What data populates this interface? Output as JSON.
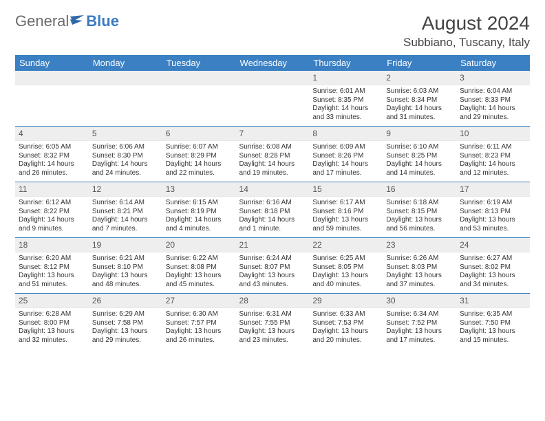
{
  "brand": {
    "part1": "General",
    "part2": "Blue",
    "logo_color": "#2f6aa8"
  },
  "title": "August 2024",
  "location": "Subbiano, Tuscany, Italy",
  "header_bg": "#3a80c3",
  "daynum_bg": "#eeeeee",
  "border_color": "#3a80c3",
  "weekdays": [
    "Sunday",
    "Monday",
    "Tuesday",
    "Wednesday",
    "Thursday",
    "Friday",
    "Saturday"
  ],
  "grid": [
    [
      null,
      null,
      null,
      null,
      {
        "n": "1",
        "sr": "6:01 AM",
        "ss": "8:35 PM",
        "dl": "14 hours and 33 minutes."
      },
      {
        "n": "2",
        "sr": "6:03 AM",
        "ss": "8:34 PM",
        "dl": "14 hours and 31 minutes."
      },
      {
        "n": "3",
        "sr": "6:04 AM",
        "ss": "8:33 PM",
        "dl": "14 hours and 29 minutes."
      }
    ],
    [
      {
        "n": "4",
        "sr": "6:05 AM",
        "ss": "8:32 PM",
        "dl": "14 hours and 26 minutes."
      },
      {
        "n": "5",
        "sr": "6:06 AM",
        "ss": "8:30 PM",
        "dl": "14 hours and 24 minutes."
      },
      {
        "n": "6",
        "sr": "6:07 AM",
        "ss": "8:29 PM",
        "dl": "14 hours and 22 minutes."
      },
      {
        "n": "7",
        "sr": "6:08 AM",
        "ss": "8:28 PM",
        "dl": "14 hours and 19 minutes."
      },
      {
        "n": "8",
        "sr": "6:09 AM",
        "ss": "8:26 PM",
        "dl": "14 hours and 17 minutes."
      },
      {
        "n": "9",
        "sr": "6:10 AM",
        "ss": "8:25 PM",
        "dl": "14 hours and 14 minutes."
      },
      {
        "n": "10",
        "sr": "6:11 AM",
        "ss": "8:23 PM",
        "dl": "14 hours and 12 minutes."
      }
    ],
    [
      {
        "n": "11",
        "sr": "6:12 AM",
        "ss": "8:22 PM",
        "dl": "14 hours and 9 minutes."
      },
      {
        "n": "12",
        "sr": "6:14 AM",
        "ss": "8:21 PM",
        "dl": "14 hours and 7 minutes."
      },
      {
        "n": "13",
        "sr": "6:15 AM",
        "ss": "8:19 PM",
        "dl": "14 hours and 4 minutes."
      },
      {
        "n": "14",
        "sr": "6:16 AM",
        "ss": "8:18 PM",
        "dl": "14 hours and 1 minute."
      },
      {
        "n": "15",
        "sr": "6:17 AM",
        "ss": "8:16 PM",
        "dl": "13 hours and 59 minutes."
      },
      {
        "n": "16",
        "sr": "6:18 AM",
        "ss": "8:15 PM",
        "dl": "13 hours and 56 minutes."
      },
      {
        "n": "17",
        "sr": "6:19 AM",
        "ss": "8:13 PM",
        "dl": "13 hours and 53 minutes."
      }
    ],
    [
      {
        "n": "18",
        "sr": "6:20 AM",
        "ss": "8:12 PM",
        "dl": "13 hours and 51 minutes."
      },
      {
        "n": "19",
        "sr": "6:21 AM",
        "ss": "8:10 PM",
        "dl": "13 hours and 48 minutes."
      },
      {
        "n": "20",
        "sr": "6:22 AM",
        "ss": "8:08 PM",
        "dl": "13 hours and 45 minutes."
      },
      {
        "n": "21",
        "sr": "6:24 AM",
        "ss": "8:07 PM",
        "dl": "13 hours and 43 minutes."
      },
      {
        "n": "22",
        "sr": "6:25 AM",
        "ss": "8:05 PM",
        "dl": "13 hours and 40 minutes."
      },
      {
        "n": "23",
        "sr": "6:26 AM",
        "ss": "8:03 PM",
        "dl": "13 hours and 37 minutes."
      },
      {
        "n": "24",
        "sr": "6:27 AM",
        "ss": "8:02 PM",
        "dl": "13 hours and 34 minutes."
      }
    ],
    [
      {
        "n": "25",
        "sr": "6:28 AM",
        "ss": "8:00 PM",
        "dl": "13 hours and 32 minutes."
      },
      {
        "n": "26",
        "sr": "6:29 AM",
        "ss": "7:58 PM",
        "dl": "13 hours and 29 minutes."
      },
      {
        "n": "27",
        "sr": "6:30 AM",
        "ss": "7:57 PM",
        "dl": "13 hours and 26 minutes."
      },
      {
        "n": "28",
        "sr": "6:31 AM",
        "ss": "7:55 PM",
        "dl": "13 hours and 23 minutes."
      },
      {
        "n": "29",
        "sr": "6:33 AM",
        "ss": "7:53 PM",
        "dl": "13 hours and 20 minutes."
      },
      {
        "n": "30",
        "sr": "6:34 AM",
        "ss": "7:52 PM",
        "dl": "13 hours and 17 minutes."
      },
      {
        "n": "31",
        "sr": "6:35 AM",
        "ss": "7:50 PM",
        "dl": "13 hours and 15 minutes."
      }
    ]
  ],
  "labels": {
    "sunrise": "Sunrise:",
    "sunset": "Sunset:",
    "daylight": "Daylight:"
  }
}
